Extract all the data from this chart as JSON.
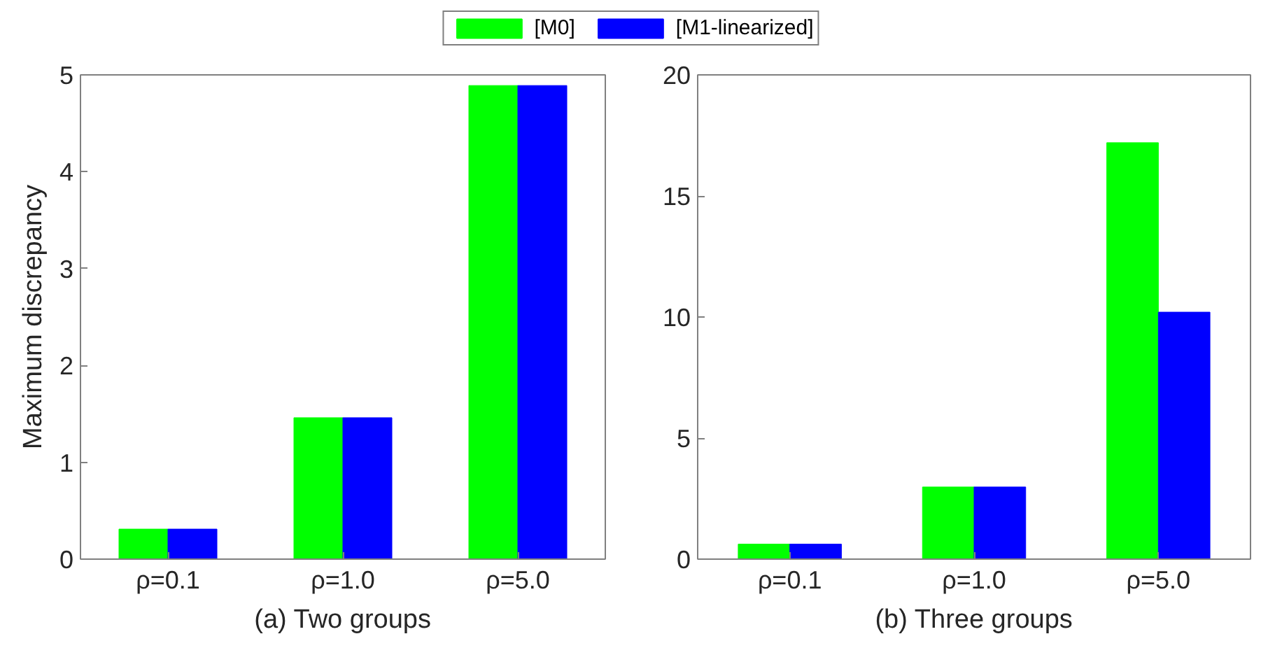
{
  "chart_data": [
    {
      "type": "bar",
      "categories": [
        "ρ=0.1",
        "ρ=1.0",
        "ρ=5.0"
      ],
      "xlabel": "(a) Two groups",
      "ylabel": "Maximum discrepancy",
      "ylim": [
        0,
        5
      ],
      "yticks": [
        0,
        1,
        2,
        3,
        4,
        5
      ],
      "grid": false,
      "legend": "top",
      "series": [
        {
          "name": "[M0]",
          "color": "#00ff00",
          "values": [
            0.31,
            1.46,
            4.89
          ]
        },
        {
          "name": "[M1-linearized]",
          "color": "#0000ff",
          "values": [
            0.31,
            1.46,
            4.89
          ]
        }
      ]
    },
    {
      "type": "bar",
      "categories": [
        "ρ=0.1",
        "ρ=1.0",
        "ρ=5.0"
      ],
      "xlabel": "(b) Three groups",
      "ylim": [
        0,
        20
      ],
      "yticks": [
        0,
        5,
        10,
        15,
        20
      ],
      "grid": false,
      "legend": false,
      "series": [
        {
          "color": "#00ff00",
          "values": [
            0.62,
            2.98,
            17.2
          ]
        },
        {
          "color": "#0000ff",
          "values": [
            0.62,
            2.98,
            10.2
          ]
        }
      ]
    }
  ]
}
